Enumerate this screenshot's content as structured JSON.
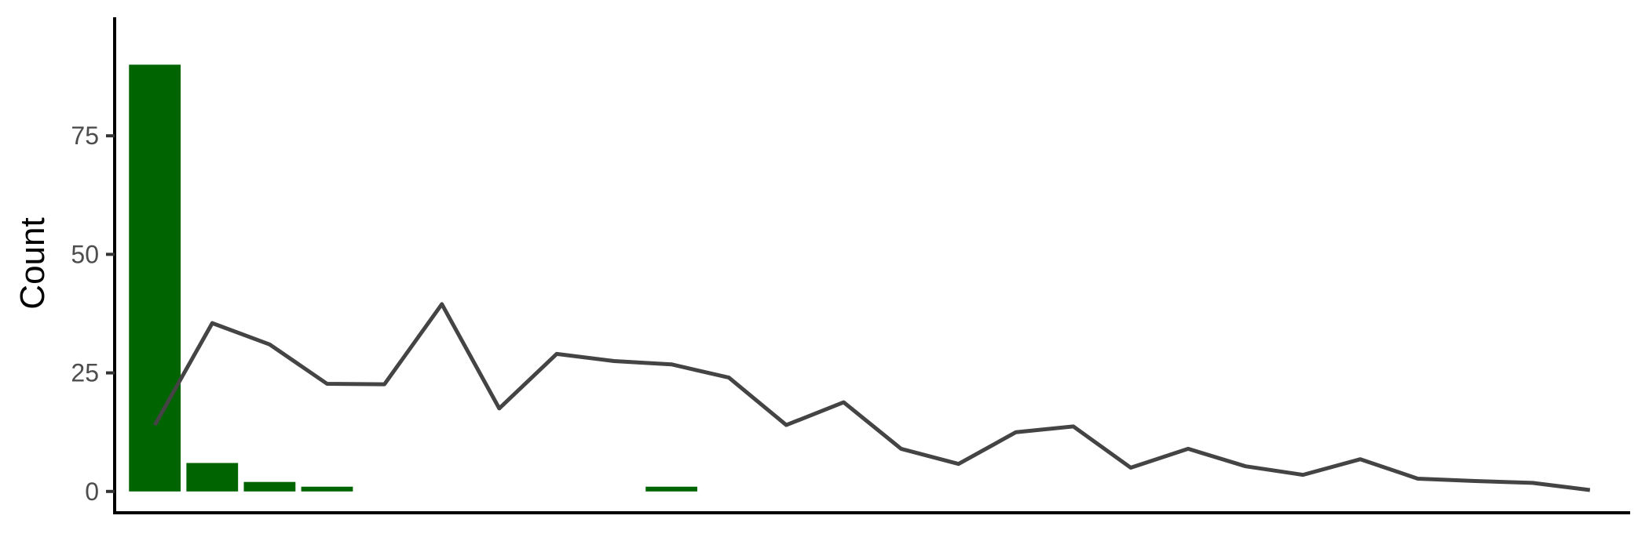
{
  "chart_data": {
    "type": "bar+line",
    "ylabel": "Count",
    "xlabel": "",
    "title": "",
    "ylim": [
      -4.5,
      100
    ],
    "xlim": [
      0.3,
      26.7
    ],
    "y_ticks": [
      0,
      25,
      50,
      75
    ],
    "grid": false,
    "legend": "none",
    "bars": {
      "color": "#006400",
      "x": [
        1,
        2,
        3,
        4,
        10
      ],
      "values": [
        90,
        6,
        2,
        1,
        1
      ]
    },
    "line": {
      "color": "#444444",
      "x": [
        1,
        2,
        3,
        4,
        5,
        6,
        7,
        8,
        9,
        10,
        11,
        12,
        13,
        14,
        15,
        16,
        17,
        18,
        19,
        20,
        21,
        22,
        23,
        24,
        25,
        26
      ],
      "values": [
        14,
        35.5,
        31,
        22.7,
        22.6,
        39.5,
        17.5,
        29,
        27.5,
        26.8,
        24,
        14,
        18.8,
        9,
        5.8,
        12.5,
        13.7,
        5,
        9,
        5.3,
        3.5,
        6.8,
        2.7,
        2.2,
        1.8,
        0.3
      ]
    }
  }
}
